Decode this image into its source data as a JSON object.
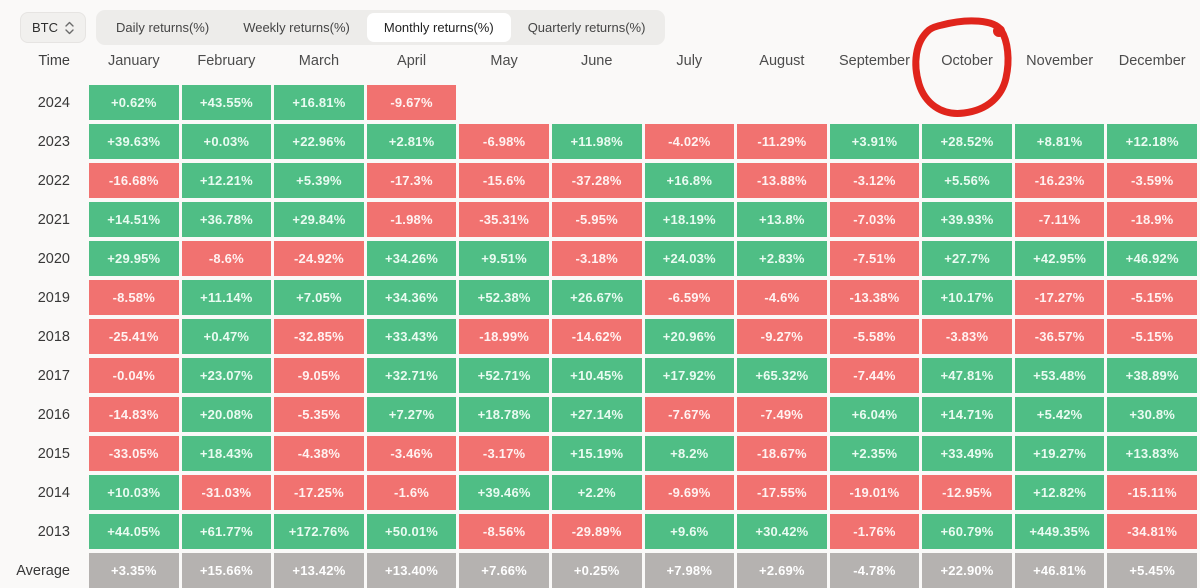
{
  "toolbar": {
    "asset_selector": {
      "label": "BTC"
    },
    "tabs": [
      {
        "label": "Daily returns(%)",
        "active": false
      },
      {
        "label": "Weekly returns(%)",
        "active": false
      },
      {
        "label": "Monthly returns(%)",
        "active": true
      },
      {
        "label": "Quarterly returns(%)",
        "active": false
      }
    ]
  },
  "annotation": {
    "type": "red-circle",
    "target_column": "October"
  },
  "chart_data": {
    "type": "heatmap",
    "title": "Monthly returns(%)",
    "columns": [
      "Time",
      "January",
      "February",
      "March",
      "April",
      "May",
      "June",
      "July",
      "August",
      "September",
      "October",
      "November",
      "December"
    ],
    "rows": [
      {
        "label": "2024",
        "values": [
          "+0.62%",
          "+43.55%",
          "+16.81%",
          "-9.67%",
          "",
          "",
          "",
          "",
          "",
          "",
          "",
          ""
        ]
      },
      {
        "label": "2023",
        "values": [
          "+39.63%",
          "+0.03%",
          "+22.96%",
          "+2.81%",
          "-6.98%",
          "+11.98%",
          "-4.02%",
          "-11.29%",
          "+3.91%",
          "+28.52%",
          "+8.81%",
          "+12.18%"
        ]
      },
      {
        "label": "2022",
        "values": [
          "-16.68%",
          "+12.21%",
          "+5.39%",
          "-17.3%",
          "-15.6%",
          "-37.28%",
          "+16.8%",
          "-13.88%",
          "-3.12%",
          "+5.56%",
          "-16.23%",
          "-3.59%"
        ]
      },
      {
        "label": "2021",
        "values": [
          "+14.51%",
          "+36.78%",
          "+29.84%",
          "-1.98%",
          "-35.31%",
          "-5.95%",
          "+18.19%",
          "+13.8%",
          "-7.03%",
          "+39.93%",
          "-7.11%",
          "-18.9%"
        ]
      },
      {
        "label": "2020",
        "values": [
          "+29.95%",
          "-8.6%",
          "-24.92%",
          "+34.26%",
          "+9.51%",
          "-3.18%",
          "+24.03%",
          "+2.83%",
          "-7.51%",
          "+27.7%",
          "+42.95%",
          "+46.92%"
        ]
      },
      {
        "label": "2019",
        "values": [
          "-8.58%",
          "+11.14%",
          "+7.05%",
          "+34.36%",
          "+52.38%",
          "+26.67%",
          "-6.59%",
          "-4.6%",
          "-13.38%",
          "+10.17%",
          "-17.27%",
          "-5.15%"
        ]
      },
      {
        "label": "2018",
        "values": [
          "-25.41%",
          "+0.47%",
          "-32.85%",
          "+33.43%",
          "-18.99%",
          "-14.62%",
          "+20.96%",
          "-9.27%",
          "-5.58%",
          "-3.83%",
          "-36.57%",
          "-5.15%"
        ]
      },
      {
        "label": "2017",
        "values": [
          "-0.04%",
          "+23.07%",
          "-9.05%",
          "+32.71%",
          "+52.71%",
          "+10.45%",
          "+17.92%",
          "+65.32%",
          "-7.44%",
          "+47.81%",
          "+53.48%",
          "+38.89%"
        ]
      },
      {
        "label": "2016",
        "values": [
          "-14.83%",
          "+20.08%",
          "-5.35%",
          "+7.27%",
          "+18.78%",
          "+27.14%",
          "-7.67%",
          "-7.49%",
          "+6.04%",
          "+14.71%",
          "+5.42%",
          "+30.8%"
        ]
      },
      {
        "label": "2015",
        "values": [
          "-33.05%",
          "+18.43%",
          "-4.38%",
          "-3.46%",
          "-3.17%",
          "+15.19%",
          "+8.2%",
          "-18.67%",
          "+2.35%",
          "+33.49%",
          "+19.27%",
          "+13.83%"
        ]
      },
      {
        "label": "2014",
        "values": [
          "+10.03%",
          "-31.03%",
          "-17.25%",
          "-1.6%",
          "+39.46%",
          "+2.2%",
          "-9.69%",
          "-17.55%",
          "-19.01%",
          "-12.95%",
          "+12.82%",
          "-15.11%"
        ]
      },
      {
        "label": "2013",
        "values": [
          "+44.05%",
          "+61.77%",
          "+172.76%",
          "+50.01%",
          "-8.56%",
          "-29.89%",
          "+9.6%",
          "+30.42%",
          "-1.76%",
          "+60.79%",
          "+449.35%",
          "-34.81%"
        ]
      },
      {
        "label": "Average",
        "style": "average",
        "values": [
          "+3.35%",
          "+15.66%",
          "+13.42%",
          "+13.40%",
          "+7.66%",
          "+0.25%",
          "+7.98%",
          "+2.69%",
          "-4.78%",
          "+22.90%",
          "+46.81%",
          "+5.45%"
        ]
      }
    ],
    "colors": {
      "positive": "#4fbe85",
      "negative": "#f17270",
      "average": "#b5b2b0",
      "annotation": "#e0251c"
    },
    "legend_position": "none",
    "grid": false
  }
}
